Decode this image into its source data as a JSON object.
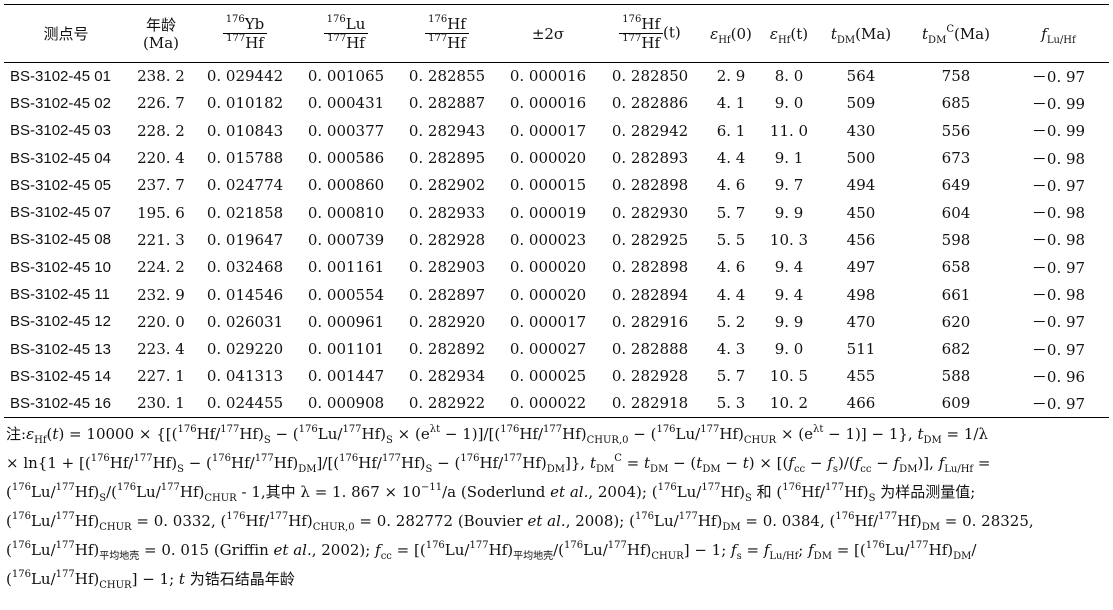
{
  "table": {
    "headers": {
      "spot": "测点号",
      "age_l1": "年龄",
      "age_l2": "(Ma)",
      "hf_t_tail": "(t)",
      "sigma": "±2σ",
      "eps0_tail": "(0)",
      "epst_tail": "(t)",
      "tdm_unit": "(Ma)",
      "tdmc_unit": "(Ma)"
    },
    "rows": [
      [
        "BS-3102-45 01",
        "238. 2",
        "0. 029442",
        "0. 001065",
        "0. 282855",
        "0. 000016",
        "0. 282850",
        "2. 9",
        "8. 0",
        "564",
        "758",
        "－0. 97"
      ],
      [
        "BS-3102-45 02",
        "226. 7",
        "0. 010182",
        "0. 000431",
        "0. 282887",
        "0. 000016",
        "0. 282886",
        "4. 1",
        "9. 0",
        "509",
        "685",
        "－0. 99"
      ],
      [
        "BS-3102-45 03",
        "228. 2",
        "0. 010843",
        "0. 000377",
        "0. 282943",
        "0. 000017",
        "0. 282942",
        "6. 1",
        "11. 0",
        "430",
        "556",
        "－0. 99"
      ],
      [
        "BS-3102-45 04",
        "220. 4",
        "0. 015788",
        "0. 000586",
        "0. 282895",
        "0. 000020",
        "0. 282893",
        "4. 4",
        "9. 1",
        "500",
        "673",
        "－0. 98"
      ],
      [
        "BS-3102-45 05",
        "237. 7",
        "0. 024774",
        "0. 000860",
        "0. 282902",
        "0. 000015",
        "0. 282898",
        "4. 6",
        "9. 7",
        "494",
        "649",
        "－0. 97"
      ],
      [
        "BS-3102-45 07",
        "195. 6",
        "0. 021858",
        "0. 000810",
        "0. 282933",
        "0. 000019",
        "0. 282930",
        "5. 7",
        "9. 9",
        "450",
        "604",
        "－0. 98"
      ],
      [
        "BS-3102-45 08",
        "221. 3",
        "0. 019647",
        "0. 000739",
        "0. 282928",
        "0. 000023",
        "0. 282925",
        "5. 5",
        "10. 3",
        "456",
        "598",
        "－0. 98"
      ],
      [
        "BS-3102-45 10",
        "224. 2",
        "0. 032468",
        "0. 001161",
        "0. 282903",
        "0. 000020",
        "0. 282898",
        "4. 6",
        "9. 4",
        "497",
        "658",
        "－0. 97"
      ],
      [
        "BS-3102-45 11",
        "232. 9",
        "0. 014546",
        "0. 000554",
        "0. 282897",
        "0. 000020",
        "0. 282894",
        "4. 4",
        "9. 4",
        "498",
        "661",
        "－0. 98"
      ],
      [
        "BS-3102-45 12",
        "220. 0",
        "0. 026031",
        "0. 000961",
        "0. 282920",
        "0. 000017",
        "0. 282916",
        "5. 2",
        "9. 9",
        "470",
        "620",
        "－0. 97"
      ],
      [
        "BS-3102-45 13",
        "223. 4",
        "0. 029220",
        "0. 001101",
        "0. 282892",
        "0. 000027",
        "0. 282888",
        "4. 3",
        "9. 0",
        "511",
        "682",
        "－0. 97"
      ],
      [
        "BS-3102-45 14",
        "227. 1",
        "0. 041313",
        "0. 001447",
        "0. 282934",
        "0. 000025",
        "0. 282928",
        "5. 7",
        "10. 5",
        "455",
        "588",
        "－0. 96"
      ],
      [
        "BS-3102-45 16",
        "230. 1",
        "0. 024455",
        "0. 000908",
        "0. 282922",
        "0. 000022",
        "0. 282918",
        "5. 3",
        "10. 2",
        "466",
        "609",
        "－0. 97"
      ]
    ]
  },
  "note": {
    "prefix": "注:",
    "lambda_value": "1. 867 × 10",
    "lambda_exp": "−11",
    "cite1": "Soderlund",
    "cite1_year": ", 2004);",
    "chur_lu_value": "= 0. 0332,",
    "chur_hf_value": "= 0. 282772 (Bouvier",
    "cite2_year": ", 2008);",
    "dm_lu_value": "= 0. 0384,",
    "dm_hf_value": "= 0. 28325,",
    "crust_value": "= 0. 015 (Griffin",
    "cite3_year": ", 2002);",
    "etal": "et al.",
    "sample_text": "为样品测量值;",
    "among_text": "- 1,其中 λ =",
    "crust_sub": "平均地壳",
    "t_text": "为锆石结晶年龄"
  }
}
